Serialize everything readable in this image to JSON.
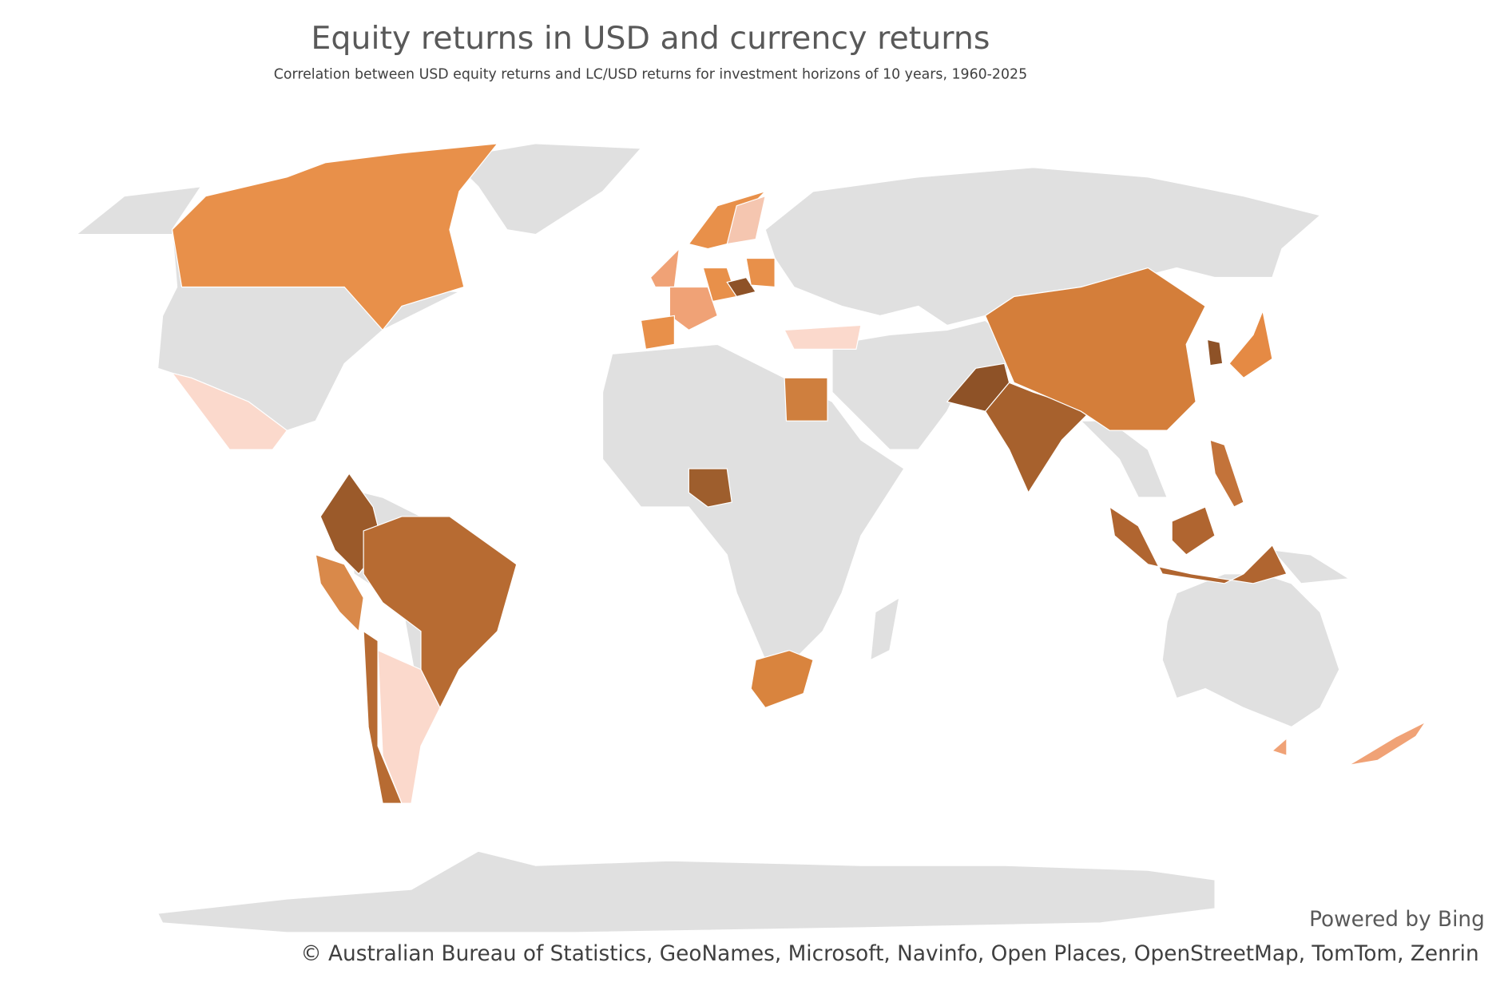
{
  "header": {
    "title": "Equity returns in USD and currency returns",
    "subtitle": "Correlation between USD equity returns and LC/USD returns for investment horizons of 10 years, 1960-2025"
  },
  "footer": {
    "powered_by": "Powered by Bing",
    "attribution": "© Australian Bureau of Statistics, GeoNames, Microsoft, Navinfo, Open Places, OpenStreetMap, TomTom, Zenrin"
  }
}
